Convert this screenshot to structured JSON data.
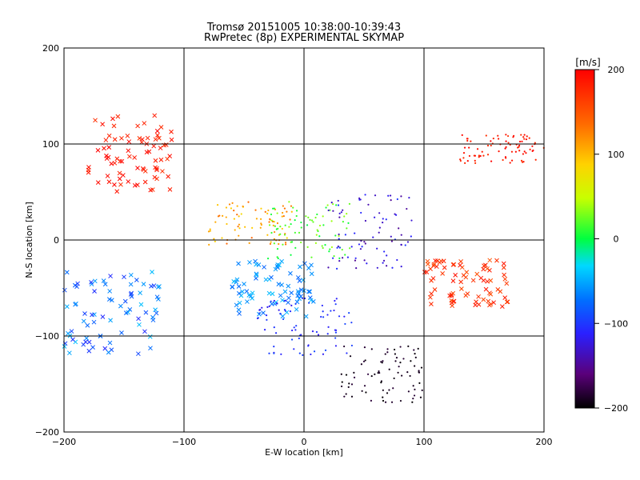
{
  "chart_data": {
    "type": "scatter",
    "title": "Tromsø 20151005 10:38:00-10:39:43",
    "subtitle": "RwPretec (8p) EXPERIMENTAL SKYMAP",
    "xlabel": "E-W location [km]",
    "ylabel": "N-S location [km]",
    "xlim": [
      -200,
      200
    ],
    "ylim": [
      -200,
      200
    ],
    "x_ticks": [
      -200,
      -100,
      0,
      100,
      200
    ],
    "y_ticks": [
      -200,
      -100,
      0,
      100,
      200
    ],
    "grid": true,
    "colorbar": {
      "label": "[m/s]",
      "range": [
        -200,
        200
      ],
      "ticks": [
        200,
        100,
        0,
        -100,
        -200
      ],
      "colormap": "rainbow"
    },
    "marker_types": [
      "x",
      "dot"
    ],
    "clusters": [
      {
        "x": [
          -180,
          -110
        ],
        "y": [
          50,
          130
        ],
        "value": [
          170,
          200
        ],
        "marker": "x"
      },
      {
        "x": [
          -200,
          -120
        ],
        "y": [
          -120,
          -30
        ],
        "value": [
          -110,
          -40
        ],
        "marker": "x"
      },
      {
        "x": [
          -80,
          -10
        ],
        "y": [
          -5,
          40
        ],
        "value": [
          80,
          140
        ],
        "marker": "dot"
      },
      {
        "x": [
          -30,
          40
        ],
        "y": [
          -20,
          40
        ],
        "value": [
          0,
          40
        ],
        "marker": "dot"
      },
      {
        "x": [
          -60,
          10
        ],
        "y": [
          -80,
          -20
        ],
        "value": [
          -80,
          -40
        ],
        "marker": "x"
      },
      {
        "x": [
          -40,
          40
        ],
        "y": [
          -120,
          -60
        ],
        "value": [
          -120,
          -90
        ],
        "marker": "dot"
      },
      {
        "x": [
          20,
          90
        ],
        "y": [
          -30,
          50
        ],
        "value": [
          -150,
          -100
        ],
        "marker": "dot"
      },
      {
        "x": [
          30,
          100
        ],
        "y": [
          -170,
          -110
        ],
        "value": [
          -200,
          -180
        ],
        "marker": "dot"
      },
      {
        "x": [
          130,
          200
        ],
        "y": [
          80,
          110
        ],
        "value": [
          170,
          200
        ],
        "marker": "dot"
      },
      {
        "x": [
          100,
          170
        ],
        "y": [
          -70,
          -20
        ],
        "value": [
          150,
          190
        ],
        "marker": "x"
      }
    ],
    "colors": {
      "background": "#ffffff",
      "axis": "#000000"
    }
  }
}
